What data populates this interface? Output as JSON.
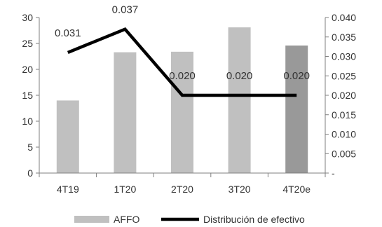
{
  "chart_data": {
    "type": "bar",
    "categories": [
      "4T19",
      "1T20",
      "2T20",
      "3T20",
      "4T20e"
    ],
    "series": [
      {
        "name": "AFFO",
        "type": "bar",
        "axis": "left",
        "values": [
          14.0,
          23.3,
          23.4,
          28.1,
          24.6
        ],
        "color": "#c0c0c0",
        "highlight_color": "#999999",
        "highlight_index": 4
      },
      {
        "name": "Distribución de efectivo",
        "type": "line",
        "axis": "right",
        "values": [
          0.031,
          0.037,
          0.02,
          0.02,
          0.02
        ],
        "labels": [
          "0.031",
          "0.037",
          "0.020",
          "0.020",
          "0.020"
        ],
        "color": "#000000"
      }
    ],
    "y_left": {
      "ylim": [
        0,
        30
      ],
      "ticks": [
        0,
        5,
        10,
        15,
        20,
        25,
        30
      ],
      "tick_labels": [
        "0",
        "5",
        "10",
        "15",
        "20",
        "25",
        "30"
      ]
    },
    "y_right": {
      "ylim": [
        0,
        0.04
      ],
      "ticks": [
        0,
        0.005,
        0.01,
        0.015,
        0.02,
        0.025,
        0.03,
        0.035,
        0.04
      ],
      "tick_labels": [
        "-",
        "0.005",
        "0.010",
        "0.015",
        "0.020",
        "0.025",
        "0.030",
        "0.035",
        "0.040"
      ]
    },
    "grid": false,
    "legend": "bottom"
  }
}
